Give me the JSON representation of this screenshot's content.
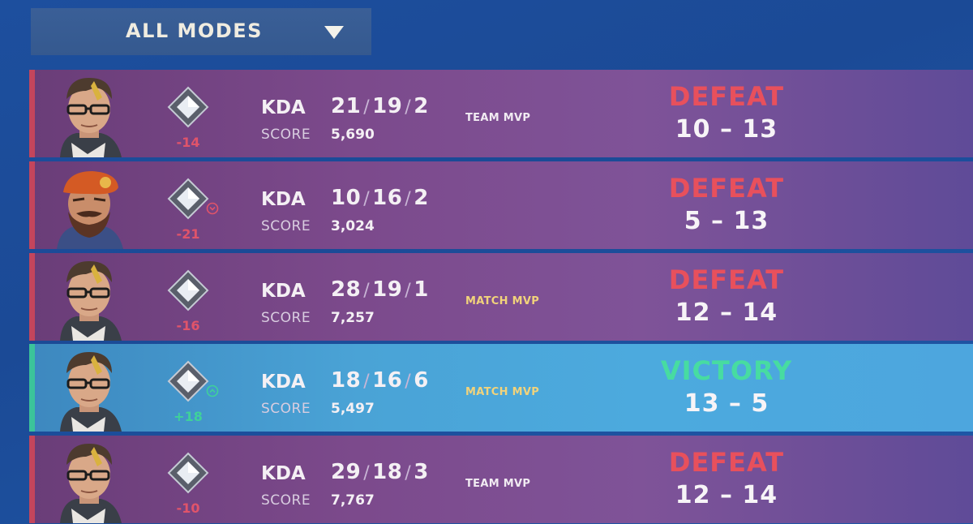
{
  "filter": {
    "label": "ALL MODES",
    "icon": "triangle-down-icon"
  },
  "kda_label": "KDA",
  "score_label": "SCORE",
  "matches": [
    {
      "agent": "agent-portrait-glasses",
      "outcome": "defeat",
      "rr_change": "-14",
      "rr_badge": "",
      "kills": "21",
      "deaths": "19",
      "assists": "2",
      "score": "5,690",
      "mvp": "TEAM MVP",
      "result": "DEFEAT",
      "rounds": "10 – 13"
    },
    {
      "agent": "agent-portrait-beret",
      "outcome": "defeat",
      "rr_change": "-21",
      "rr_badge": "demotion-badge-icon",
      "kills": "10",
      "deaths": "16",
      "assists": "2",
      "score": "3,024",
      "mvp": "",
      "result": "DEFEAT",
      "rounds": "5 – 13"
    },
    {
      "agent": "agent-portrait-glasses",
      "outcome": "defeat",
      "rr_change": "-16",
      "rr_badge": "",
      "kills": "28",
      "deaths": "19",
      "assists": "1",
      "score": "7,257",
      "mvp": "MATCH MVP",
      "result": "DEFEAT",
      "rounds": "12 – 14"
    },
    {
      "agent": "agent-portrait-glasses",
      "outcome": "victory",
      "rr_change": "+18",
      "rr_badge": "promotion-badge-icon",
      "kills": "18",
      "deaths": "16",
      "assists": "6",
      "score": "5,497",
      "mvp": "MATCH MVP",
      "result": "VICTORY",
      "rounds": "13 – 5"
    },
    {
      "agent": "agent-portrait-glasses",
      "outcome": "defeat",
      "rr_change": "-10",
      "rr_badge": "",
      "kills": "29",
      "deaths": "18",
      "assists": "3",
      "score": "7,767",
      "mvp": "TEAM MVP",
      "result": "DEFEAT",
      "rounds": "12 – 14"
    }
  ],
  "colors": {
    "defeat": "#e8505c",
    "victory": "#47dca1",
    "match_mvp": "#f1d37b",
    "rank_icon": "#d8dde6"
  }
}
